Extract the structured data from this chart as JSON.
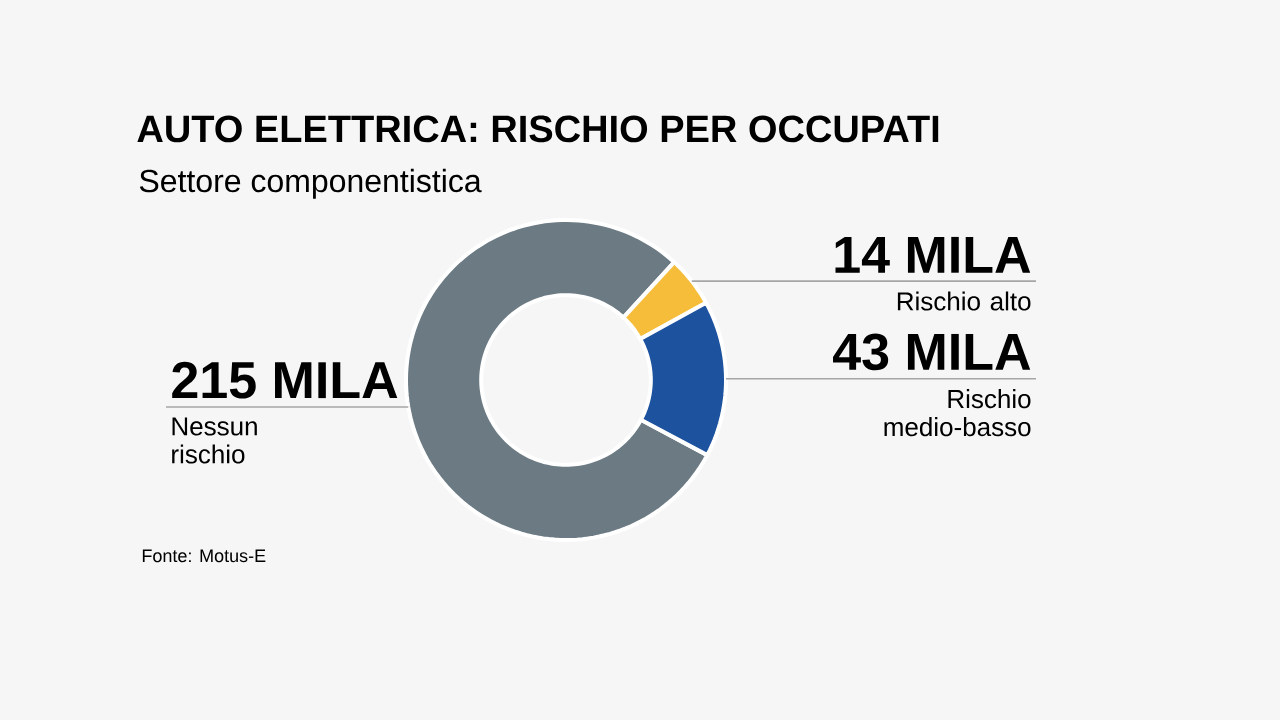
{
  "chart_data": {
    "type": "donut",
    "title": "AUTO ELETTRICA: RISCHIO PER OCCUPATI",
    "subtitle": "Settore componentistica",
    "categories": [
      "Nessun rischio",
      "Rischio alto",
      "Rischio medio-basso"
    ],
    "values": [
      215,
      14,
      43
    ],
    "value_labels": [
      "215 MILA",
      "14 MILA",
      "43 MILA"
    ],
    "colors": [
      "#6b7a83",
      "#f6bd3b",
      "#1d529e"
    ],
    "annotations": [
      "Fonte: Motus-E"
    ]
  }
}
